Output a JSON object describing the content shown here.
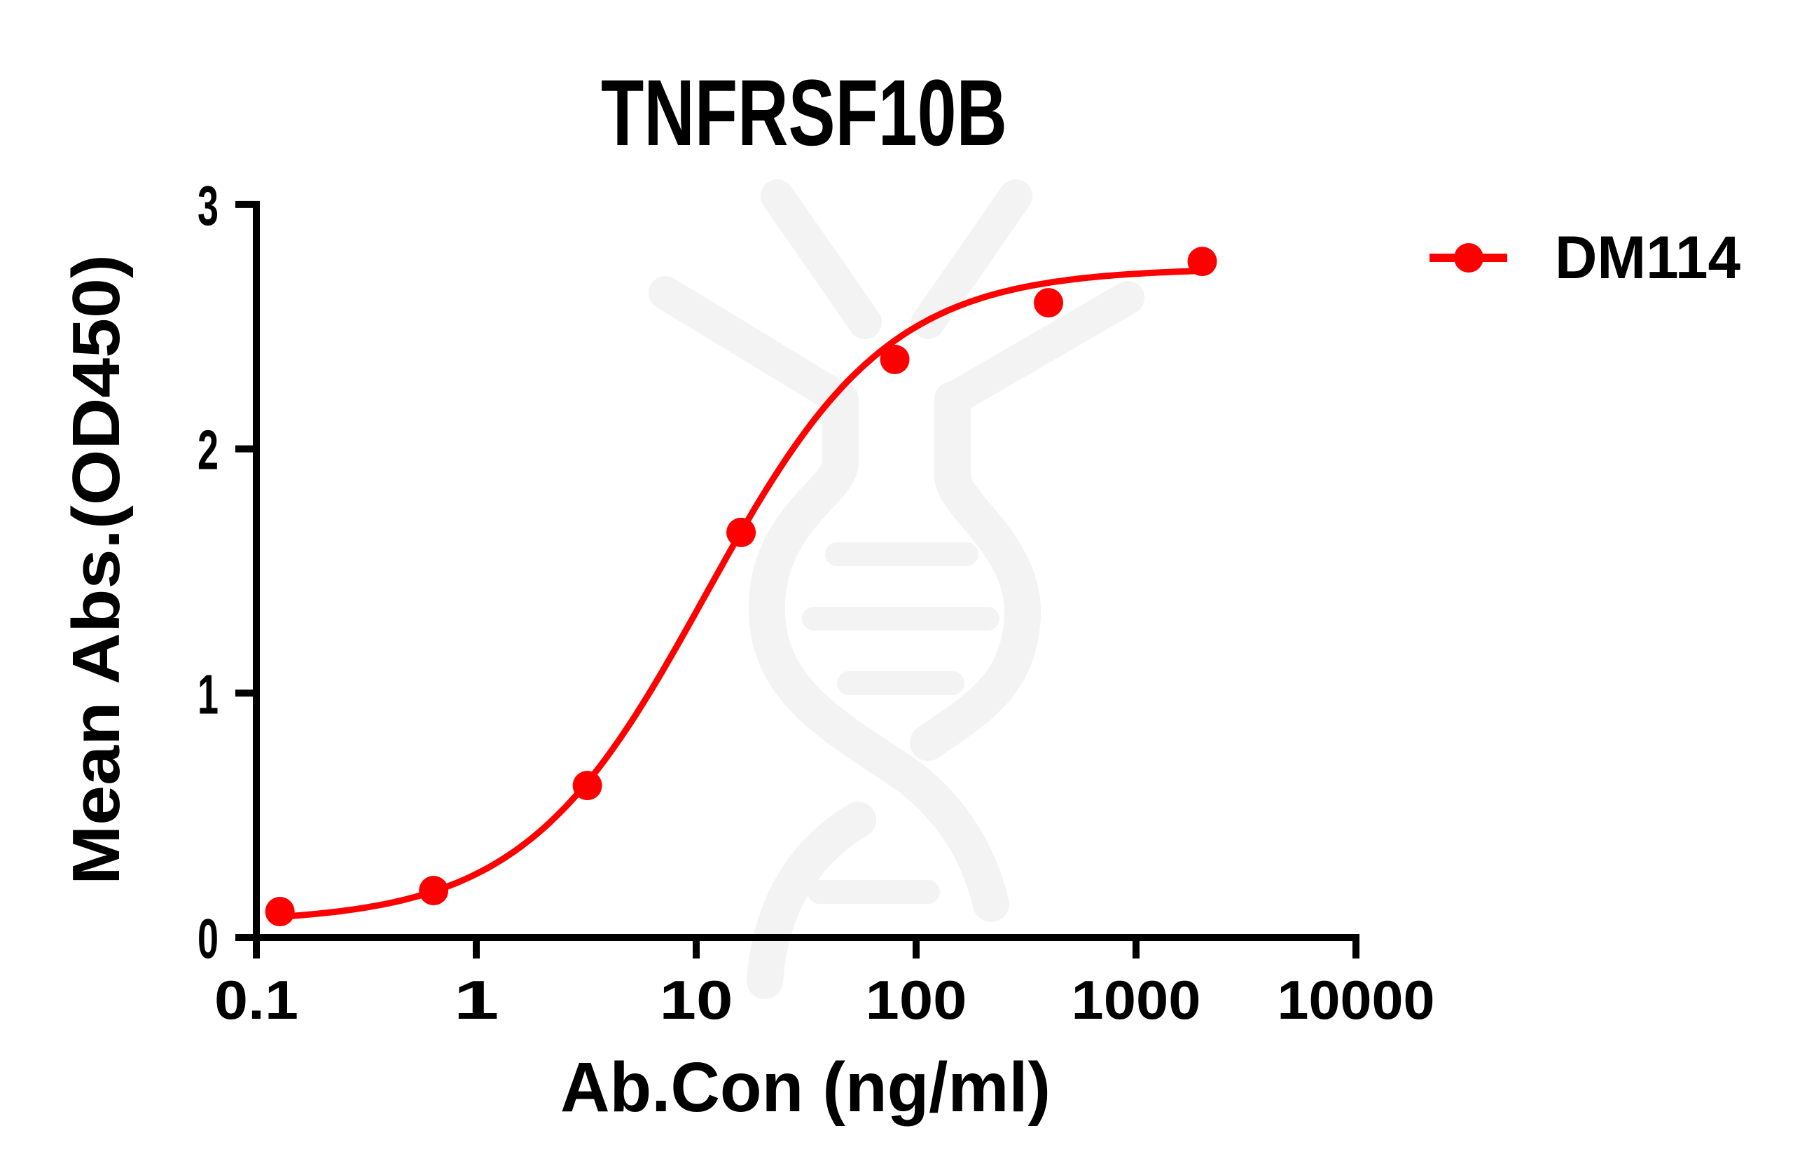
{
  "chart_data": {
    "type": "line",
    "title": "TNFRSF10B",
    "xlabel": "Ab.Con (ng/ml)",
    "ylabel": "Mean Abs.(OD450)",
    "x_scale": "log10",
    "xlim": [
      0.1,
      10000
    ],
    "ylim": [
      0,
      3
    ],
    "x_ticks": [
      0.1,
      1,
      10,
      100,
      1000,
      10000
    ],
    "x_tick_labels": [
      "0.1",
      "1",
      "10",
      "100",
      "1000",
      "10000"
    ],
    "y_ticks": [
      0,
      1,
      2,
      3
    ],
    "y_tick_labels": [
      "0",
      "1",
      "2",
      "3"
    ],
    "grid": false,
    "legend_position": "upper right, outside plot",
    "series": [
      {
        "name": "DM114",
        "color": "#ff0000",
        "marker": "circle",
        "x": [
          0.128,
          0.64,
          3.2,
          16,
          80,
          400,
          2000
        ],
        "y": [
          0.106,
          0.192,
          0.622,
          1.658,
          2.366,
          2.598,
          2.767
        ],
        "fit": {
          "model": "4PL sigmoid",
          "bottom": 0.06,
          "top": 2.74,
          "ec50": 11,
          "hill": 1.05,
          "x_range": [
            0.128,
            2000
          ]
        }
      }
    ]
  },
  "colors": {
    "series": "#ff0000",
    "axis": "#000000",
    "watermark": "#f3f3f3",
    "background": "#ffffff"
  }
}
